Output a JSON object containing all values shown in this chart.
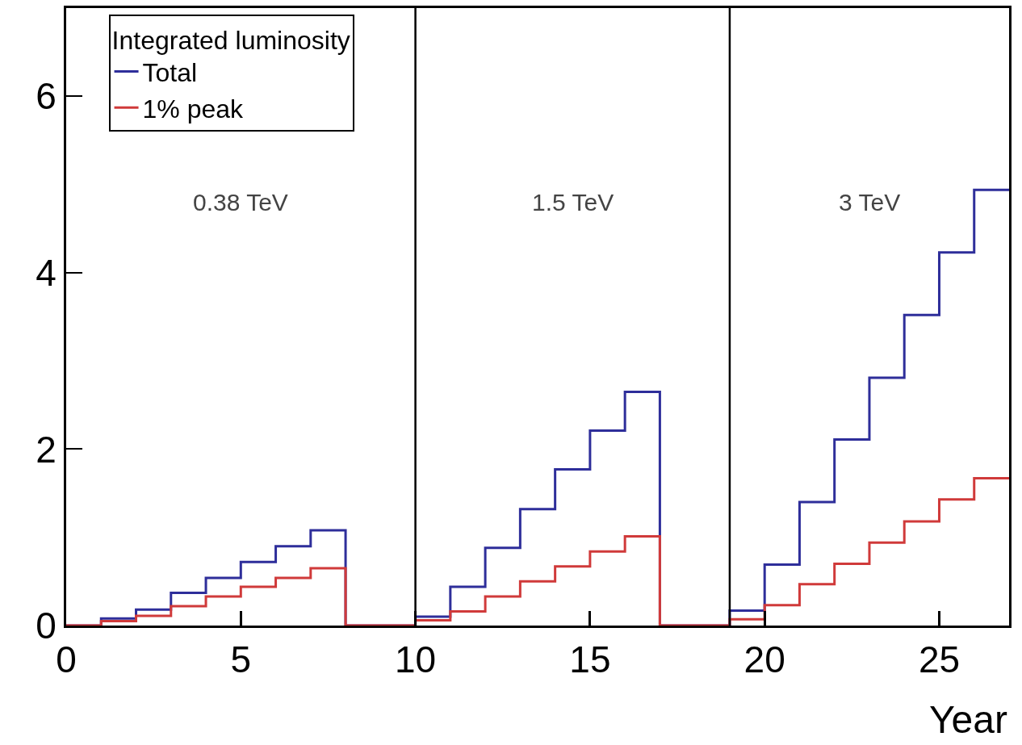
{
  "chart_data": {
    "type": "histogram",
    "xlabel": "Year",
    "legend_title": "Integrated luminosity",
    "legend": "top left",
    "grid": false,
    "bins": [
      0,
      1,
      2,
      3,
      4,
      5,
      6,
      7,
      8,
      9,
      10,
      11,
      12,
      13,
      14,
      15,
      16,
      17,
      18,
      19,
      20,
      21,
      22,
      23,
      24,
      25,
      26,
      27
    ],
    "series": [
      {
        "name": "Total",
        "color": "#2e2e9a",
        "values": [
          0,
          0.08,
          0.18,
          0.37,
          0.54,
          0.72,
          0.9,
          1.08,
          0,
          0,
          0.1,
          0.44,
          0.88,
          1.32,
          1.77,
          2.21,
          2.65,
          0,
          0,
          0.17,
          0.69,
          1.4,
          2.11,
          2.81,
          3.52,
          4.23,
          4.94
        ]
      },
      {
        "name": "1% peak",
        "color": "#d03a3a",
        "values": [
          0,
          0.05,
          0.11,
          0.22,
          0.33,
          0.44,
          0.54,
          0.65,
          0,
          0,
          0.06,
          0.16,
          0.33,
          0.5,
          0.67,
          0.84,
          1.01,
          0,
          0,
          0.07,
          0.23,
          0.47,
          0.7,
          0.94,
          1.18,
          1.43,
          1.67
        ]
      }
    ],
    "xlim": [
      0,
      27
    ],
    "xticks": [
      0,
      5,
      10,
      15,
      20,
      25
    ],
    "ylim": [
      0,
      7
    ],
    "yticks": [
      0,
      2,
      4,
      6
    ],
    "ref_lines": [
      {
        "axis": "x",
        "value": 10,
        "color": "#000000"
      },
      {
        "axis": "x",
        "value": 19,
        "color": "#000000"
      }
    ],
    "annotations": [
      "0.38 TeV",
      "1.5 TeV",
      "3 TeV"
    ]
  }
}
